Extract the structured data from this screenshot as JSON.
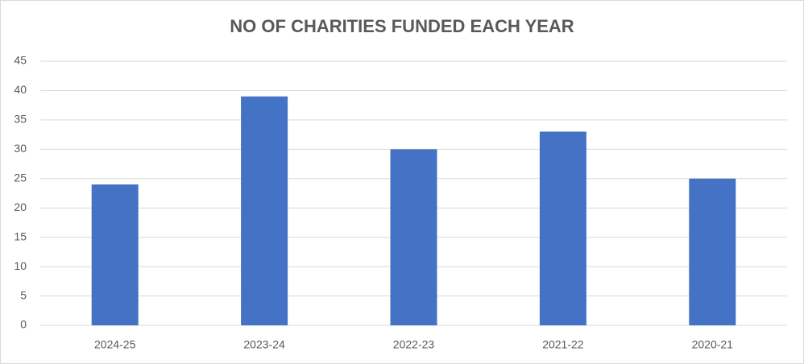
{
  "chart_data": {
    "type": "bar",
    "title": "NO OF CHARITIES FUNDED EACH YEAR",
    "categories": [
      "2024-25",
      "2023-24",
      "2022-23",
      "2021-22",
      "2020-21"
    ],
    "values": [
      24,
      39,
      30,
      33,
      25
    ],
    "color": "#4472c4",
    "ylim": [
      0,
      45
    ],
    "yticks": [
      0,
      5,
      10,
      15,
      20,
      25,
      30,
      35,
      40,
      45
    ],
    "grid": true
  }
}
